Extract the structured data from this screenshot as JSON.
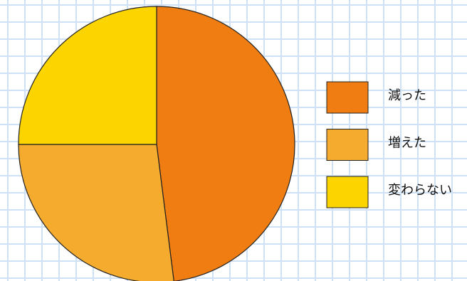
{
  "chart_data": {
    "type": "pie",
    "categories": [
      "減った",
      "増えた",
      "変わらない"
    ],
    "values": [
      48,
      27,
      25
    ],
    "colors": [
      "#ef7d11",
      "#f5ab2e",
      "#fcd500"
    ],
    "start_angle": 0,
    "direction": "clockwise",
    "legend": "right"
  }
}
